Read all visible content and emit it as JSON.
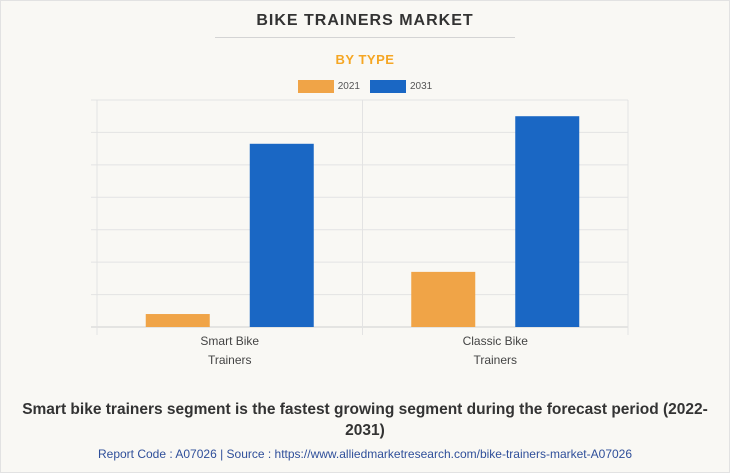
{
  "header": {
    "title": "BIKE TRAINERS MARKET",
    "subtitle": "BY TYPE"
  },
  "colors": {
    "subtitle": "#f5a623",
    "series_2021": "#f0a447",
    "series_2031": "#1a67c4",
    "grid": "#e3e3e3",
    "axis": "#cfcfcf"
  },
  "chart_data": {
    "type": "bar",
    "categories": [
      "Smart Bike\nTrainers",
      "Classic Bike\nTrainers"
    ],
    "series": [
      {
        "name": "2021",
        "values": [
          4,
          17
        ]
      },
      {
        "name": "2031",
        "values": [
          56.5,
          65
        ]
      }
    ],
    "title": "BIKE TRAINERS MARKET",
    "subtitle": "BY TYPE",
    "xlabel": "",
    "ylabel": "",
    "ylim": [
      0,
      70
    ],
    "grid": true,
    "legend": "top-center",
    "y_tick_labels_shown": false
  },
  "caption": "Smart bike trainers segment is the fastest growing segment during the forecast period (2022-2031)",
  "footer": "Report Code : A07026  |  Source : https://www.alliedmarketresearch.com/bike-trainers-market-A07026"
}
